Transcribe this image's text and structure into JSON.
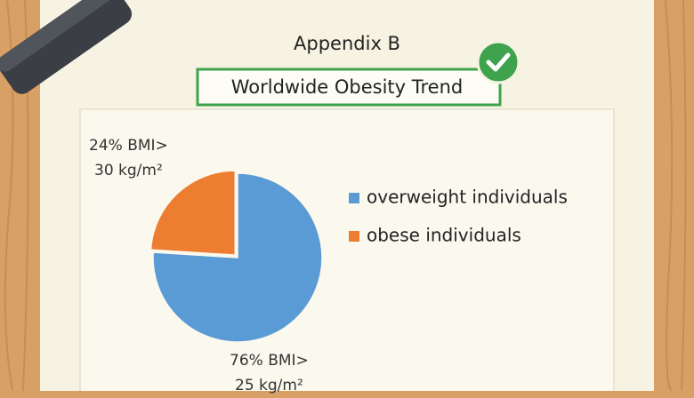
{
  "header": {
    "title": "Appendix B"
  },
  "chart_data": {
    "type": "pie",
    "title": "Worldwide Obesity Trend",
    "categories": [
      "overweight individuals",
      "obese individuals"
    ],
    "values": [
      76,
      24
    ],
    "value_labels": [
      "76% BMI>\n25 kg/m²",
      "24% BMI>\n30 kg/m²"
    ],
    "colors": [
      "#5b9bd5",
      "#ed7d31"
    ]
  }
}
